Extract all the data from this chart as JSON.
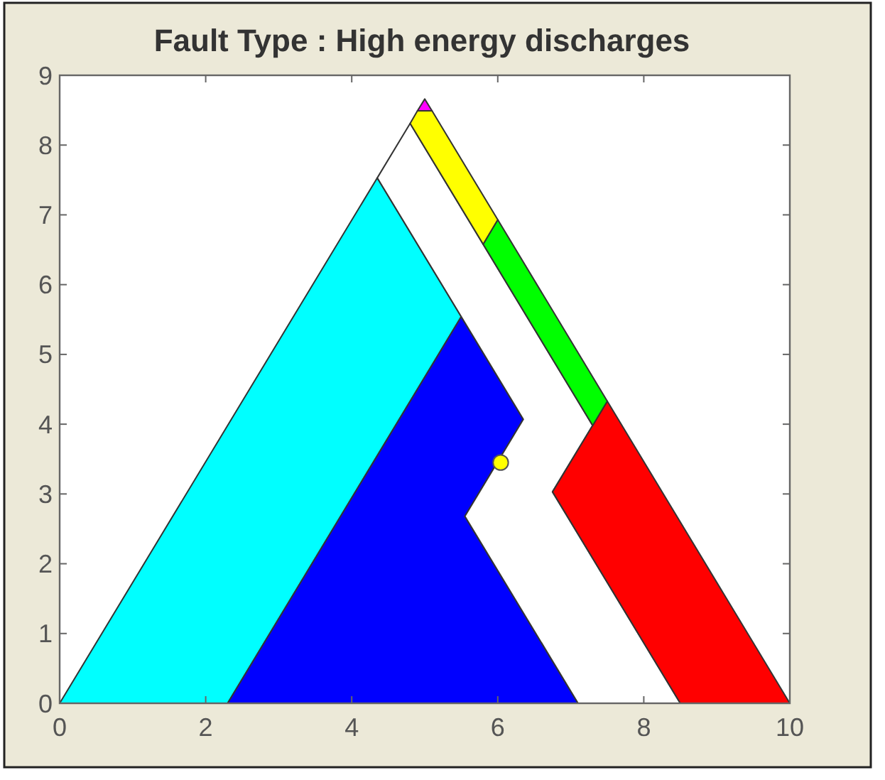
{
  "chart_data": {
    "type": "area",
    "title": "Fault Type : High energy discharges",
    "xlim": [
      0,
      10
    ],
    "ylim": [
      0,
      9
    ],
    "xticks": [
      0,
      2,
      4,
      6,
      8,
      10
    ],
    "yticks": [
      0,
      1,
      2,
      3,
      4,
      5,
      6,
      7,
      8,
      9
    ],
    "grid": false,
    "series": [
      {
        "color": "#00ffff",
        "x": [
          0,
          2.3,
          5.5,
          4.35
        ],
        "values": [
          0,
          0,
          5.54,
          7.53
        ]
      },
      {
        "color": "#0000ff",
        "x": [
          2.3,
          7.1,
          5.55,
          6.35,
          5.5
        ],
        "values": [
          0,
          0,
          2.68,
          4.07,
          5.54
        ]
      },
      {
        "color": "#ffffff",
        "x": [
          4.35,
          4.8,
          7.3,
          6.75,
          8.5,
          7.1,
          5.55,
          6.35
        ],
        "values": [
          7.53,
          8.31,
          3.98,
          3.03,
          0,
          0,
          2.68,
          4.07
        ]
      },
      {
        "color": "#ff0000",
        "x": [
          8.5,
          10,
          7.5,
          6.75
        ],
        "values": [
          0,
          0,
          4.33,
          3.03
        ]
      },
      {
        "color": "#00ff00",
        "x": [
          7.5,
          6,
          5.8,
          7.3
        ],
        "values": [
          4.33,
          6.93,
          6.58,
          3.98
        ]
      },
      {
        "color": "#ffff00",
        "x": [
          4.9,
          5.1,
          6,
          5.8,
          4.8
        ],
        "values": [
          8.49,
          8.49,
          6.93,
          6.58,
          8.31
        ]
      },
      {
        "color": "#ff00ff",
        "x": [
          4.9,
          5,
          5.1
        ],
        "values": [
          8.49,
          8.66,
          8.49
        ]
      },
      {
        "type": "scatter",
        "color": "#ffff00",
        "marker": "circle",
        "x": [
          6.04
        ],
        "values": [
          3.45
        ]
      }
    ]
  }
}
